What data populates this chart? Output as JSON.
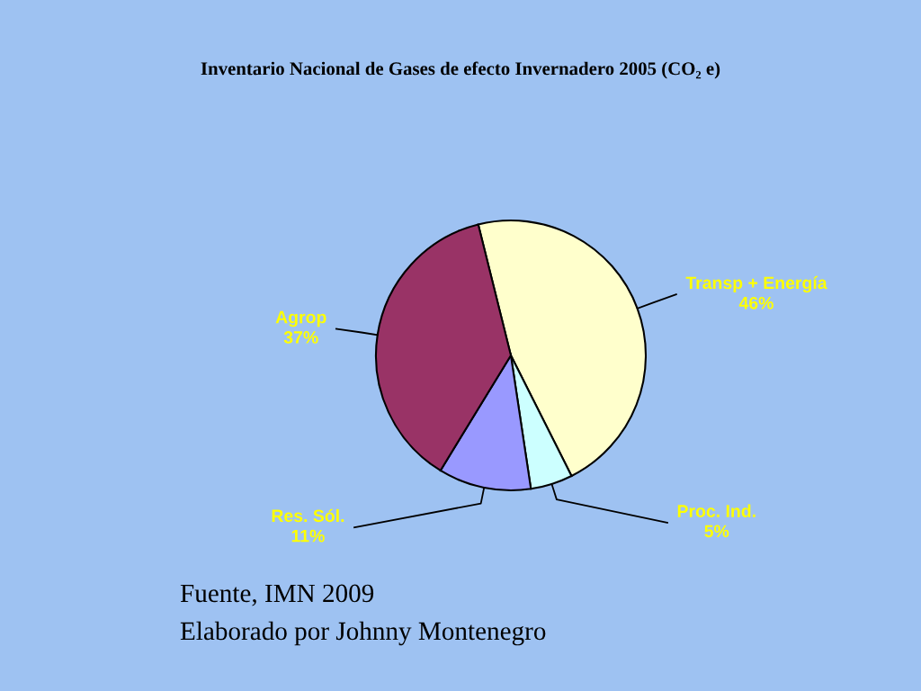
{
  "chart_data": {
    "type": "pie",
    "title": "Inventario Nacional de Gases de efecto Invernadero 2005 (CO₂ e)",
    "categories": [
      "Transp + Energía",
      "Proc. Ind.",
      "Res. Sól.",
      "Agrop"
    ],
    "values": [
      46,
      5,
      11,
      37
    ],
    "value_labels": [
      "46%",
      "5%",
      "11%",
      "37%"
    ],
    "colors": [
      "#ffffcc",
      "#ccffff",
      "#9999ff",
      "#993366"
    ],
    "annotations": [
      "Fuente, IMN 2009",
      "Elaborado por Johnny Montenegro"
    ]
  }
}
